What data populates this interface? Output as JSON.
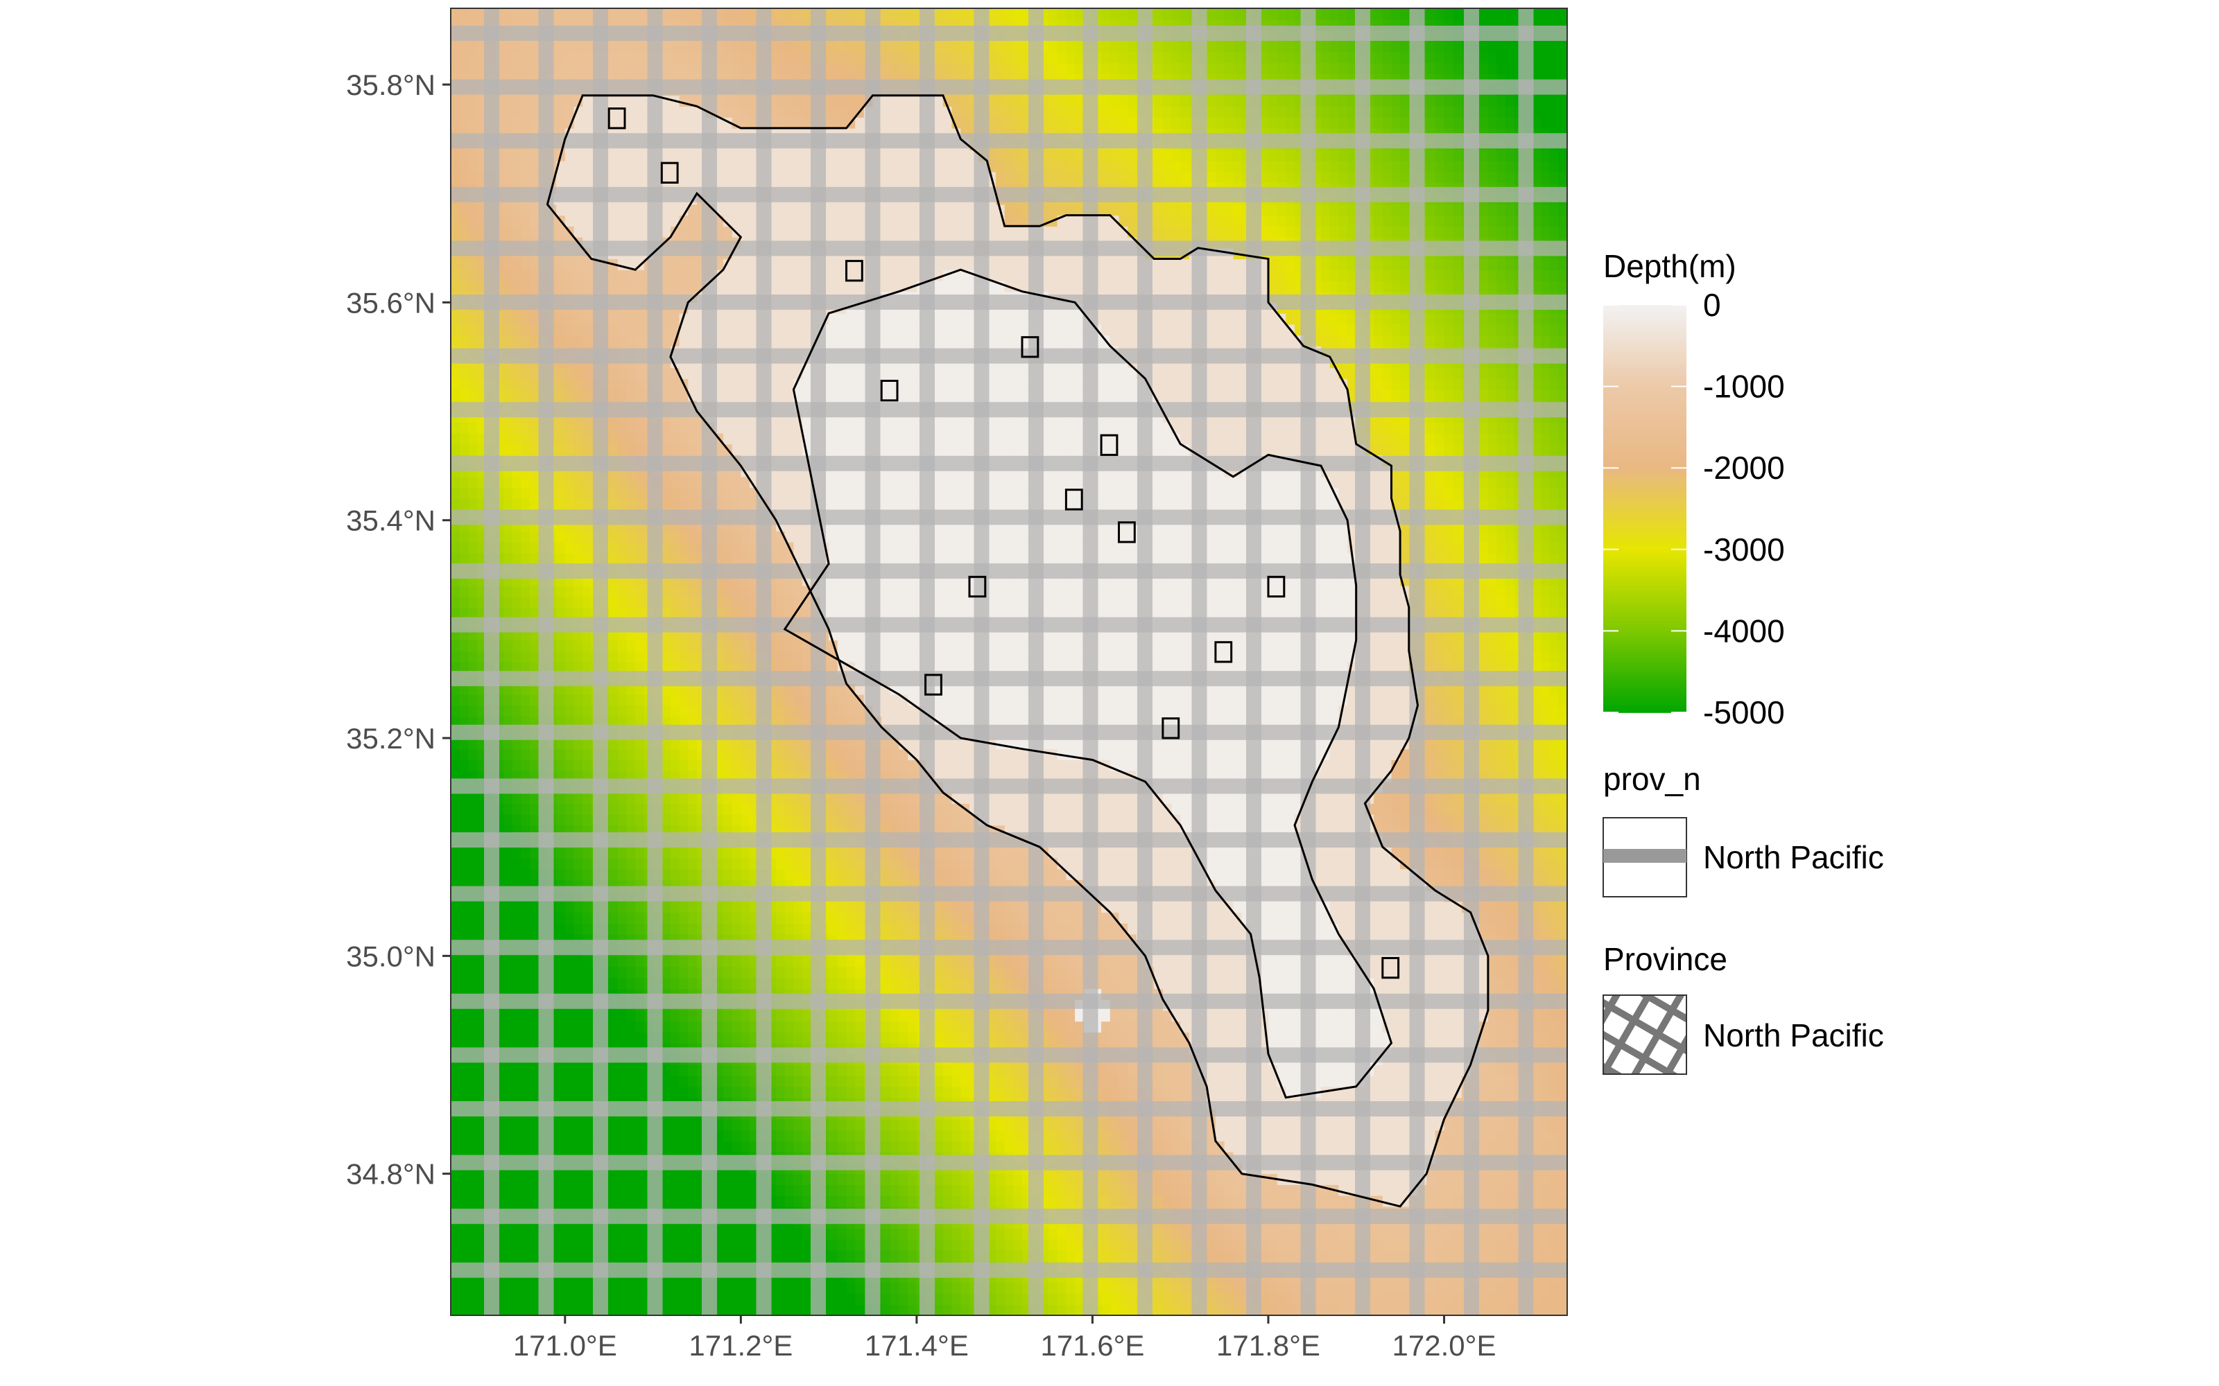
{
  "map": {
    "extent": {
      "lon": [
        170.87,
        172.14
      ],
      "lat": [
        34.67,
        35.87
      ]
    },
    "x_ticks": [
      {
        "value": 171.0,
        "label": "171.0°E"
      },
      {
        "value": 171.2,
        "label": "171.2°E"
      },
      {
        "value": 171.4,
        "label": "171.4°E"
      },
      {
        "value": 171.6,
        "label": "171.6°E"
      },
      {
        "value": 171.8,
        "label": "171.8°E"
      },
      {
        "value": 172.0,
        "label": "172.0°E"
      }
    ],
    "y_ticks": [
      {
        "value": 34.8,
        "label": "34.8°N"
      },
      {
        "value": 35.0,
        "label": "35.0°N"
      },
      {
        "value": 35.2,
        "label": "35.2°N"
      },
      {
        "value": 35.4,
        "label": "35.4°N"
      },
      {
        "value": 35.6,
        "label": "35.6°N"
      },
      {
        "value": 35.8,
        "label": "35.8°N"
      }
    ],
    "seamount_outline": [
      [
        171.0,
        35.75
      ],
      [
        171.02,
        35.79
      ],
      [
        171.1,
        35.79
      ],
      [
        171.15,
        35.78
      ],
      [
        171.2,
        35.76
      ],
      [
        171.32,
        35.76
      ],
      [
        171.35,
        35.79
      ],
      [
        171.43,
        35.79
      ],
      [
        171.45,
        35.75
      ],
      [
        171.48,
        35.73
      ],
      [
        171.5,
        35.67
      ],
      [
        171.54,
        35.67
      ],
      [
        171.57,
        35.68
      ],
      [
        171.62,
        35.68
      ],
      [
        171.67,
        35.64
      ],
      [
        171.7,
        35.64
      ],
      [
        171.72,
        35.65
      ],
      [
        171.8,
        35.64
      ],
      [
        171.8,
        35.6
      ],
      [
        171.84,
        35.56
      ],
      [
        171.87,
        35.55
      ],
      [
        171.89,
        35.52
      ],
      [
        171.9,
        35.47
      ],
      [
        171.94,
        35.45
      ],
      [
        171.94,
        35.42
      ],
      [
        171.95,
        35.39
      ],
      [
        171.95,
        35.35
      ],
      [
        171.96,
        35.32
      ],
      [
        171.96,
        35.28
      ],
      [
        171.97,
        35.23
      ],
      [
        171.96,
        35.2
      ],
      [
        171.94,
        35.17
      ],
      [
        171.91,
        35.14
      ],
      [
        171.93,
        35.1
      ],
      [
        171.99,
        35.06
      ],
      [
        172.03,
        35.04
      ],
      [
        172.05,
        35.0
      ],
      [
        172.05,
        34.95
      ],
      [
        172.03,
        34.9
      ],
      [
        172.0,
        34.85
      ],
      [
        171.98,
        34.8
      ],
      [
        171.95,
        34.77
      ],
      [
        171.9,
        34.78
      ],
      [
        171.85,
        34.79
      ],
      [
        171.77,
        34.8
      ],
      [
        171.74,
        34.83
      ],
      [
        171.73,
        34.88
      ],
      [
        171.71,
        34.92
      ],
      [
        171.68,
        34.96
      ],
      [
        171.66,
        35.0
      ],
      [
        171.62,
        35.04
      ],
      [
        171.58,
        35.07
      ],
      [
        171.54,
        35.1
      ],
      [
        171.48,
        35.12
      ],
      [
        171.43,
        35.15
      ],
      [
        171.4,
        35.18
      ],
      [
        171.36,
        35.21
      ],
      [
        171.32,
        35.25
      ],
      [
        171.3,
        35.3
      ],
      [
        171.27,
        35.35
      ],
      [
        171.24,
        35.4
      ],
      [
        171.2,
        35.45
      ],
      [
        171.15,
        35.5
      ],
      [
        171.12,
        35.55
      ],
      [
        171.14,
        35.6
      ],
      [
        171.18,
        35.63
      ],
      [
        171.2,
        35.66
      ],
      [
        171.15,
        35.7
      ],
      [
        171.12,
        35.66
      ],
      [
        171.08,
        35.63
      ],
      [
        171.03,
        35.64
      ],
      [
        170.98,
        35.69
      ]
    ],
    "inner_outline": [
      [
        171.25,
        35.3
      ],
      [
        171.3,
        35.36
      ],
      [
        171.28,
        35.44
      ],
      [
        171.26,
        35.52
      ],
      [
        171.3,
        35.59
      ],
      [
        171.38,
        35.61
      ],
      [
        171.45,
        35.63
      ],
      [
        171.52,
        35.61
      ],
      [
        171.58,
        35.6
      ],
      [
        171.62,
        35.56
      ],
      [
        171.66,
        35.53
      ],
      [
        171.7,
        35.47
      ],
      [
        171.76,
        35.44
      ],
      [
        171.8,
        35.46
      ],
      [
        171.86,
        35.45
      ],
      [
        171.89,
        35.4
      ],
      [
        171.9,
        35.34
      ],
      [
        171.9,
        35.29
      ],
      [
        171.88,
        35.21
      ],
      [
        171.85,
        35.16
      ],
      [
        171.83,
        35.12
      ],
      [
        171.85,
        35.07
      ],
      [
        171.88,
        35.02
      ],
      [
        171.92,
        34.97
      ],
      [
        171.94,
        34.92
      ],
      [
        171.9,
        34.88
      ],
      [
        171.82,
        34.87
      ],
      [
        171.8,
        34.91
      ],
      [
        171.79,
        34.98
      ],
      [
        171.78,
        35.02
      ],
      [
        171.74,
        35.06
      ],
      [
        171.7,
        35.12
      ],
      [
        171.66,
        35.16
      ],
      [
        171.6,
        35.18
      ],
      [
        171.52,
        35.19
      ],
      [
        171.45,
        35.2
      ],
      [
        171.38,
        35.24
      ]
    ],
    "small_cells": [
      [
        171.52,
        35.55
      ],
      [
        171.57,
        35.41
      ],
      [
        171.63,
        35.38
      ],
      [
        171.46,
        35.33
      ],
      [
        171.41,
        35.24
      ],
      [
        171.74,
        35.27
      ],
      [
        171.8,
        35.33
      ],
      [
        171.61,
        35.46
      ],
      [
        171.68,
        35.2
      ],
      [
        171.32,
        35.62
      ],
      [
        171.36,
        35.51
      ],
      [
        171.05,
        35.76
      ],
      [
        171.11,
        35.71
      ],
      [
        171.93,
        34.98
      ]
    ],
    "flat_point": {
      "lon": 171.6,
      "lat": 34.95
    }
  },
  "legend": {
    "depth": {
      "title": "Depth(m)",
      "labels": [
        "0",
        "-1000",
        "-2000",
        "-3000",
        "-4000",
        "-5000"
      ],
      "values": [
        0,
        -1000,
        -2000,
        -3000,
        -4000,
        -5000
      ],
      "colors": [
        "#f2f2f2",
        "#ecc9a8",
        "#e9b883",
        "#e6e600",
        "#7ec800",
        "#00a600"
      ]
    },
    "prov_n": {
      "title": "prov_n",
      "entry": "North Pacific"
    },
    "province": {
      "title": "Province",
      "entry": "North Pacific"
    }
  },
  "colors": {
    "grid_band": "#b4b4b4",
    "outline": "#000000",
    "panel_border": "#333333"
  }
}
